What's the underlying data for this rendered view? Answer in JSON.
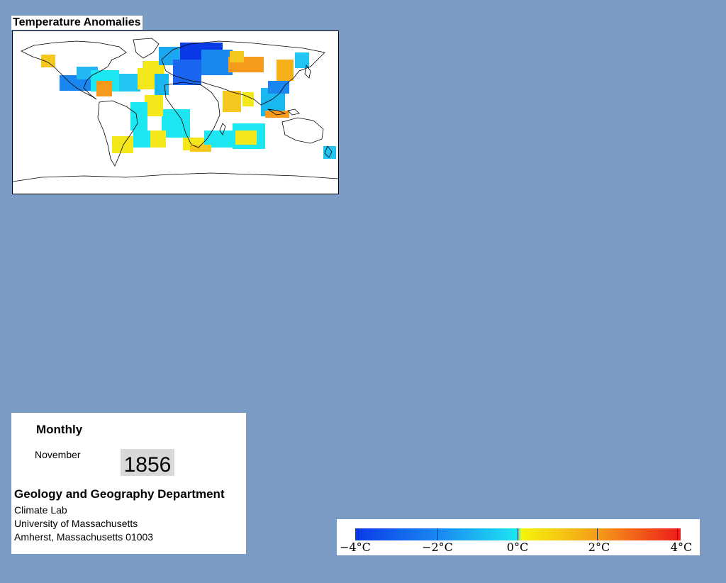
{
  "map": {
    "title": "Temperature Anomalies",
    "colors": {
      "land_outline": "#000000",
      "ocean_background": "#ffffff",
      "page_background": "#7a9cc4"
    }
  },
  "info": {
    "period_type": "Monthly",
    "month": "November",
    "year": "1856",
    "department": "Geology and Geography Department",
    "lab": "Climate Lab",
    "university": "University of Massachusetts",
    "address": "Amherst, Massachusetts 01003"
  },
  "legend": {
    "ticks": [
      "−4°C",
      "−2°C",
      "0°C",
      "2°C",
      "4°C"
    ],
    "colors": {
      "min": "#0a3ae8",
      "neg_mid": "#1a86f0",
      "zero": "#1ce6f2",
      "pos_low": "#f5f50a",
      "pos_mid": "#f59a1a",
      "max": "#ee1a1a"
    }
  }
}
